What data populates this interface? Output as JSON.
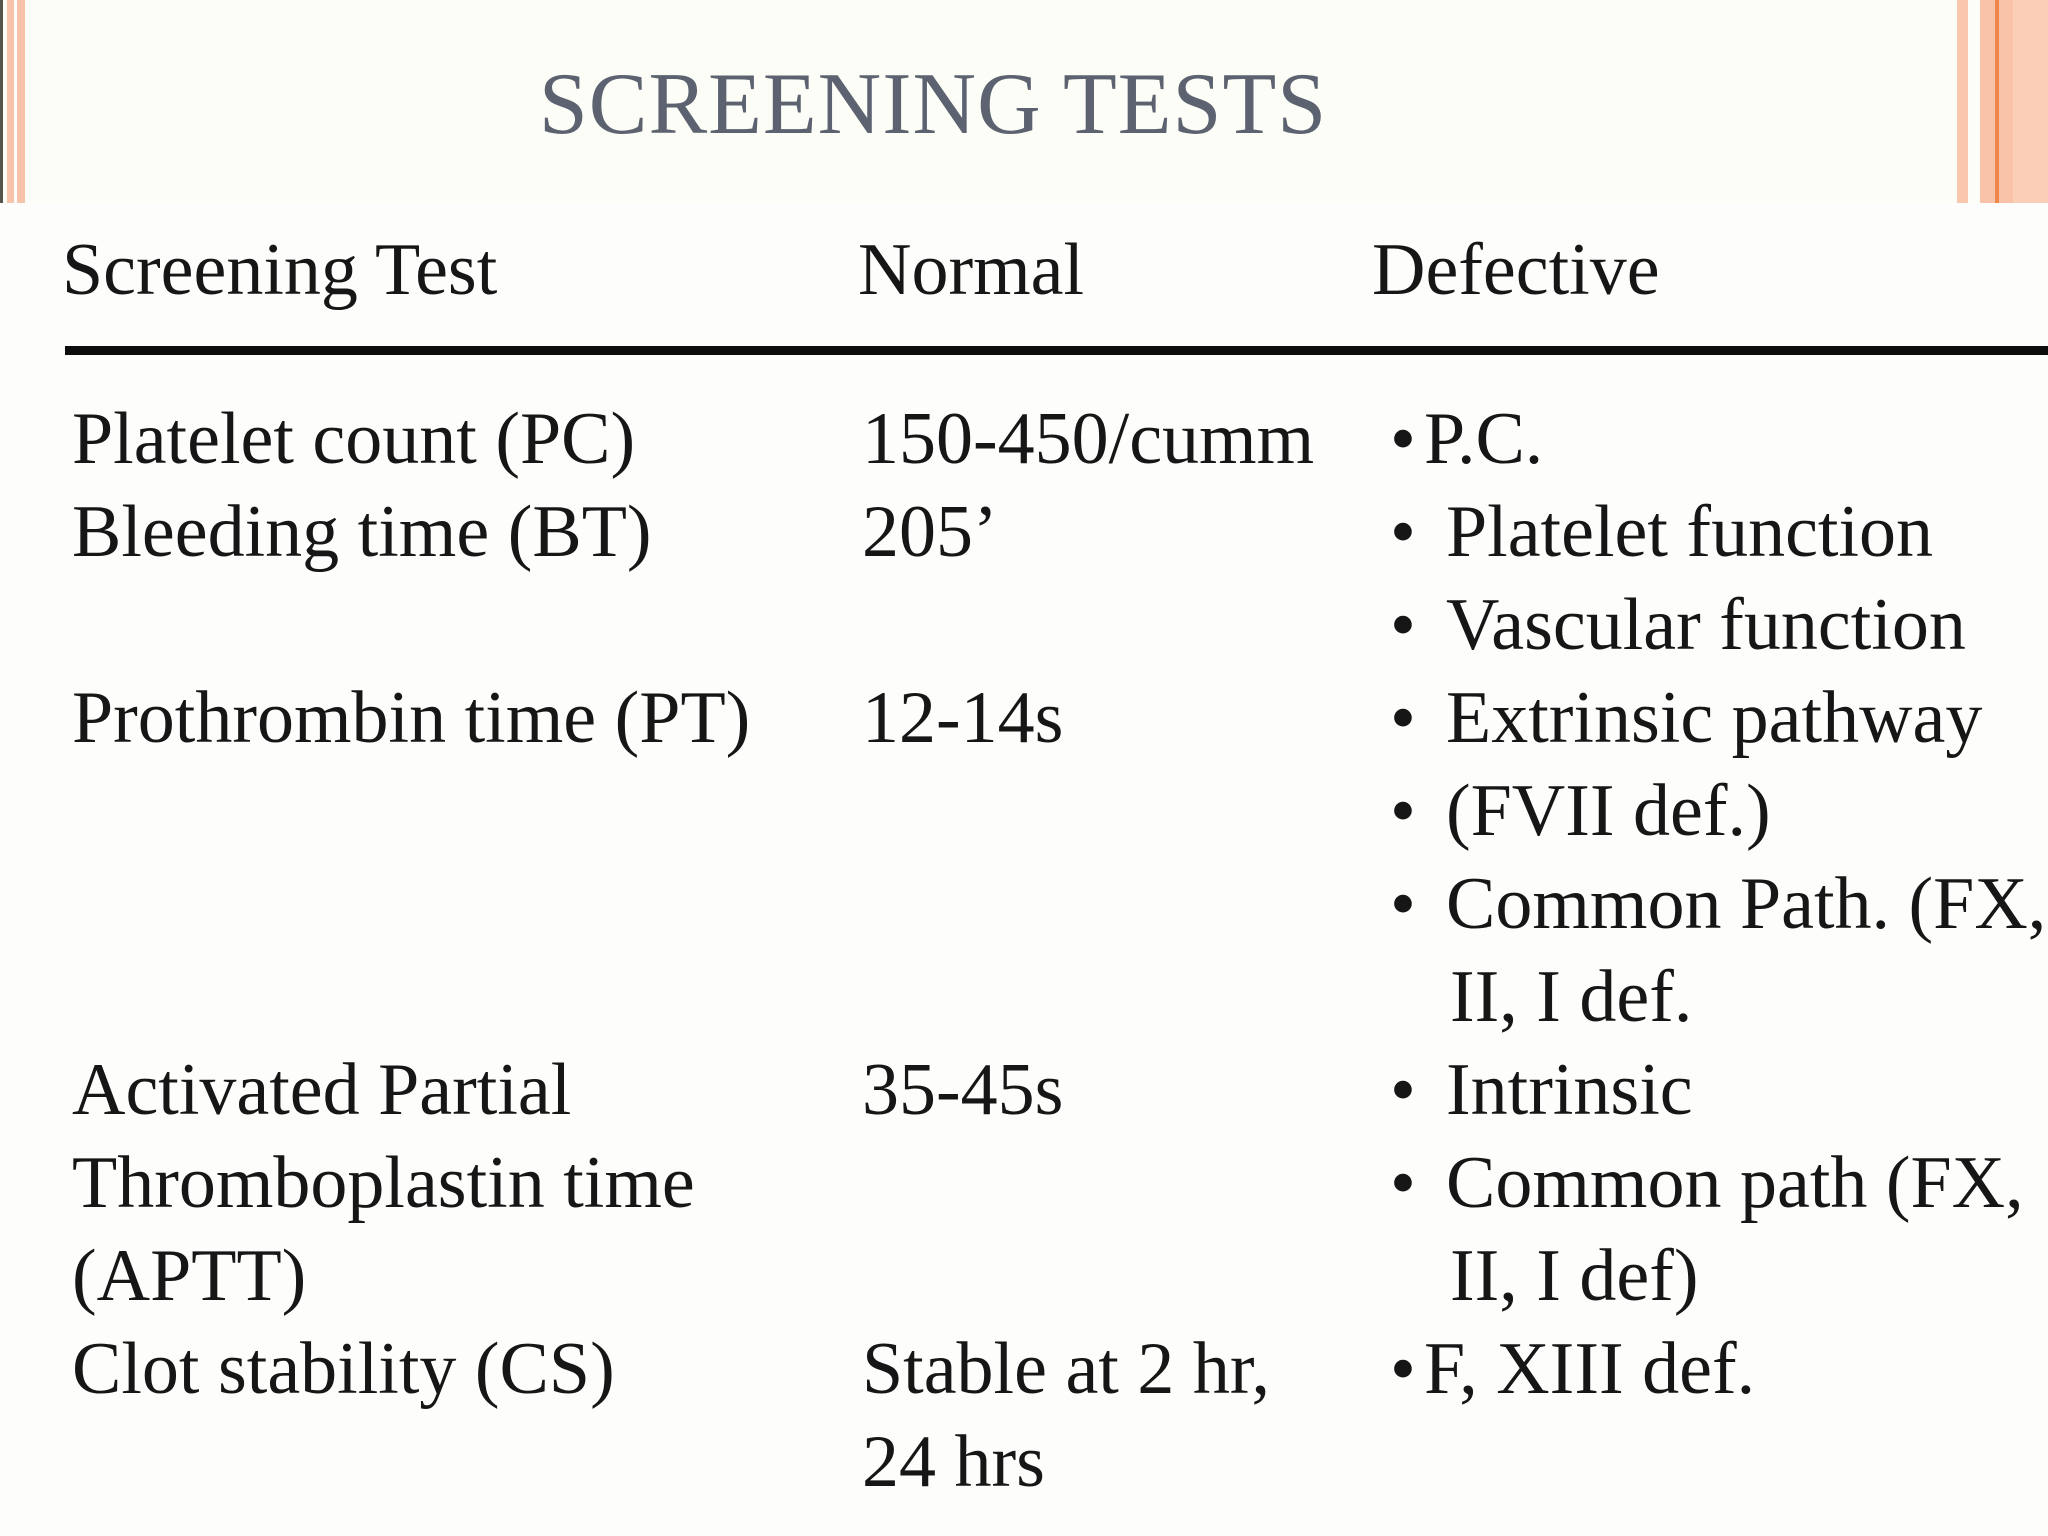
{
  "slide_title": "SCREENING TESTS",
  "bullet_char": "•",
  "table": {
    "headers": [
      "Screening Test",
      "Normal",
      "Defective"
    ],
    "lines": [
      {
        "test": "Platelet count (PC)",
        "normal": "150-450/cumm",
        "defective": "P.C.",
        "bullet": "tight"
      },
      {
        "test": "Bleeding time (BT)",
        "normal": "205’",
        "defective": "Platelet function",
        "bullet": "spaced"
      },
      {
        "test": "",
        "normal": "",
        "defective": "Vascular function",
        "bullet": "spaced"
      },
      {
        "test": "Prothrombin time (PT)",
        "normal": "12-14s",
        "defective": "Extrinsic pathway",
        "bullet": "spaced"
      },
      {
        "test": "",
        "normal": "",
        "defective": "(FVII def.)",
        "bullet": "spaced"
      },
      {
        "test": "",
        "normal": "",
        "defective": "Common Path. (FX,",
        "bullet": "spaced"
      },
      {
        "test": "",
        "normal": "",
        "defective": "II, I def.",
        "bullet": "none"
      },
      {
        "test": "Activated Partial",
        "normal": "35-45s",
        "defective": "Intrinsic",
        "bullet": "spaced"
      },
      {
        "test": "Thromboplastin time",
        "normal": "",
        "defective": "Common path (FX,",
        "bullet": "spaced"
      },
      {
        "test": "(APTT)",
        "normal": "",
        "defective": "II, I def)",
        "bullet": "none"
      },
      {
        "test": "Clot stability (CS)",
        "normal": "Stable at 2 hr,",
        "defective": "F, XIII def.",
        "bullet": "tight"
      },
      {
        "test": "",
        "normal": "24 hrs",
        "defective": "",
        "bullet": "none"
      }
    ]
  },
  "colors": {
    "title_text": "#5c6270",
    "body_text": "#161616",
    "stripe_pink": "#f8c3ab",
    "stripe_pink_light": "#fbceb8",
    "stripe_orange_line": "#ee8747",
    "band_background": "#fbfdf6",
    "header_rule": "#0d0d0d"
  }
}
